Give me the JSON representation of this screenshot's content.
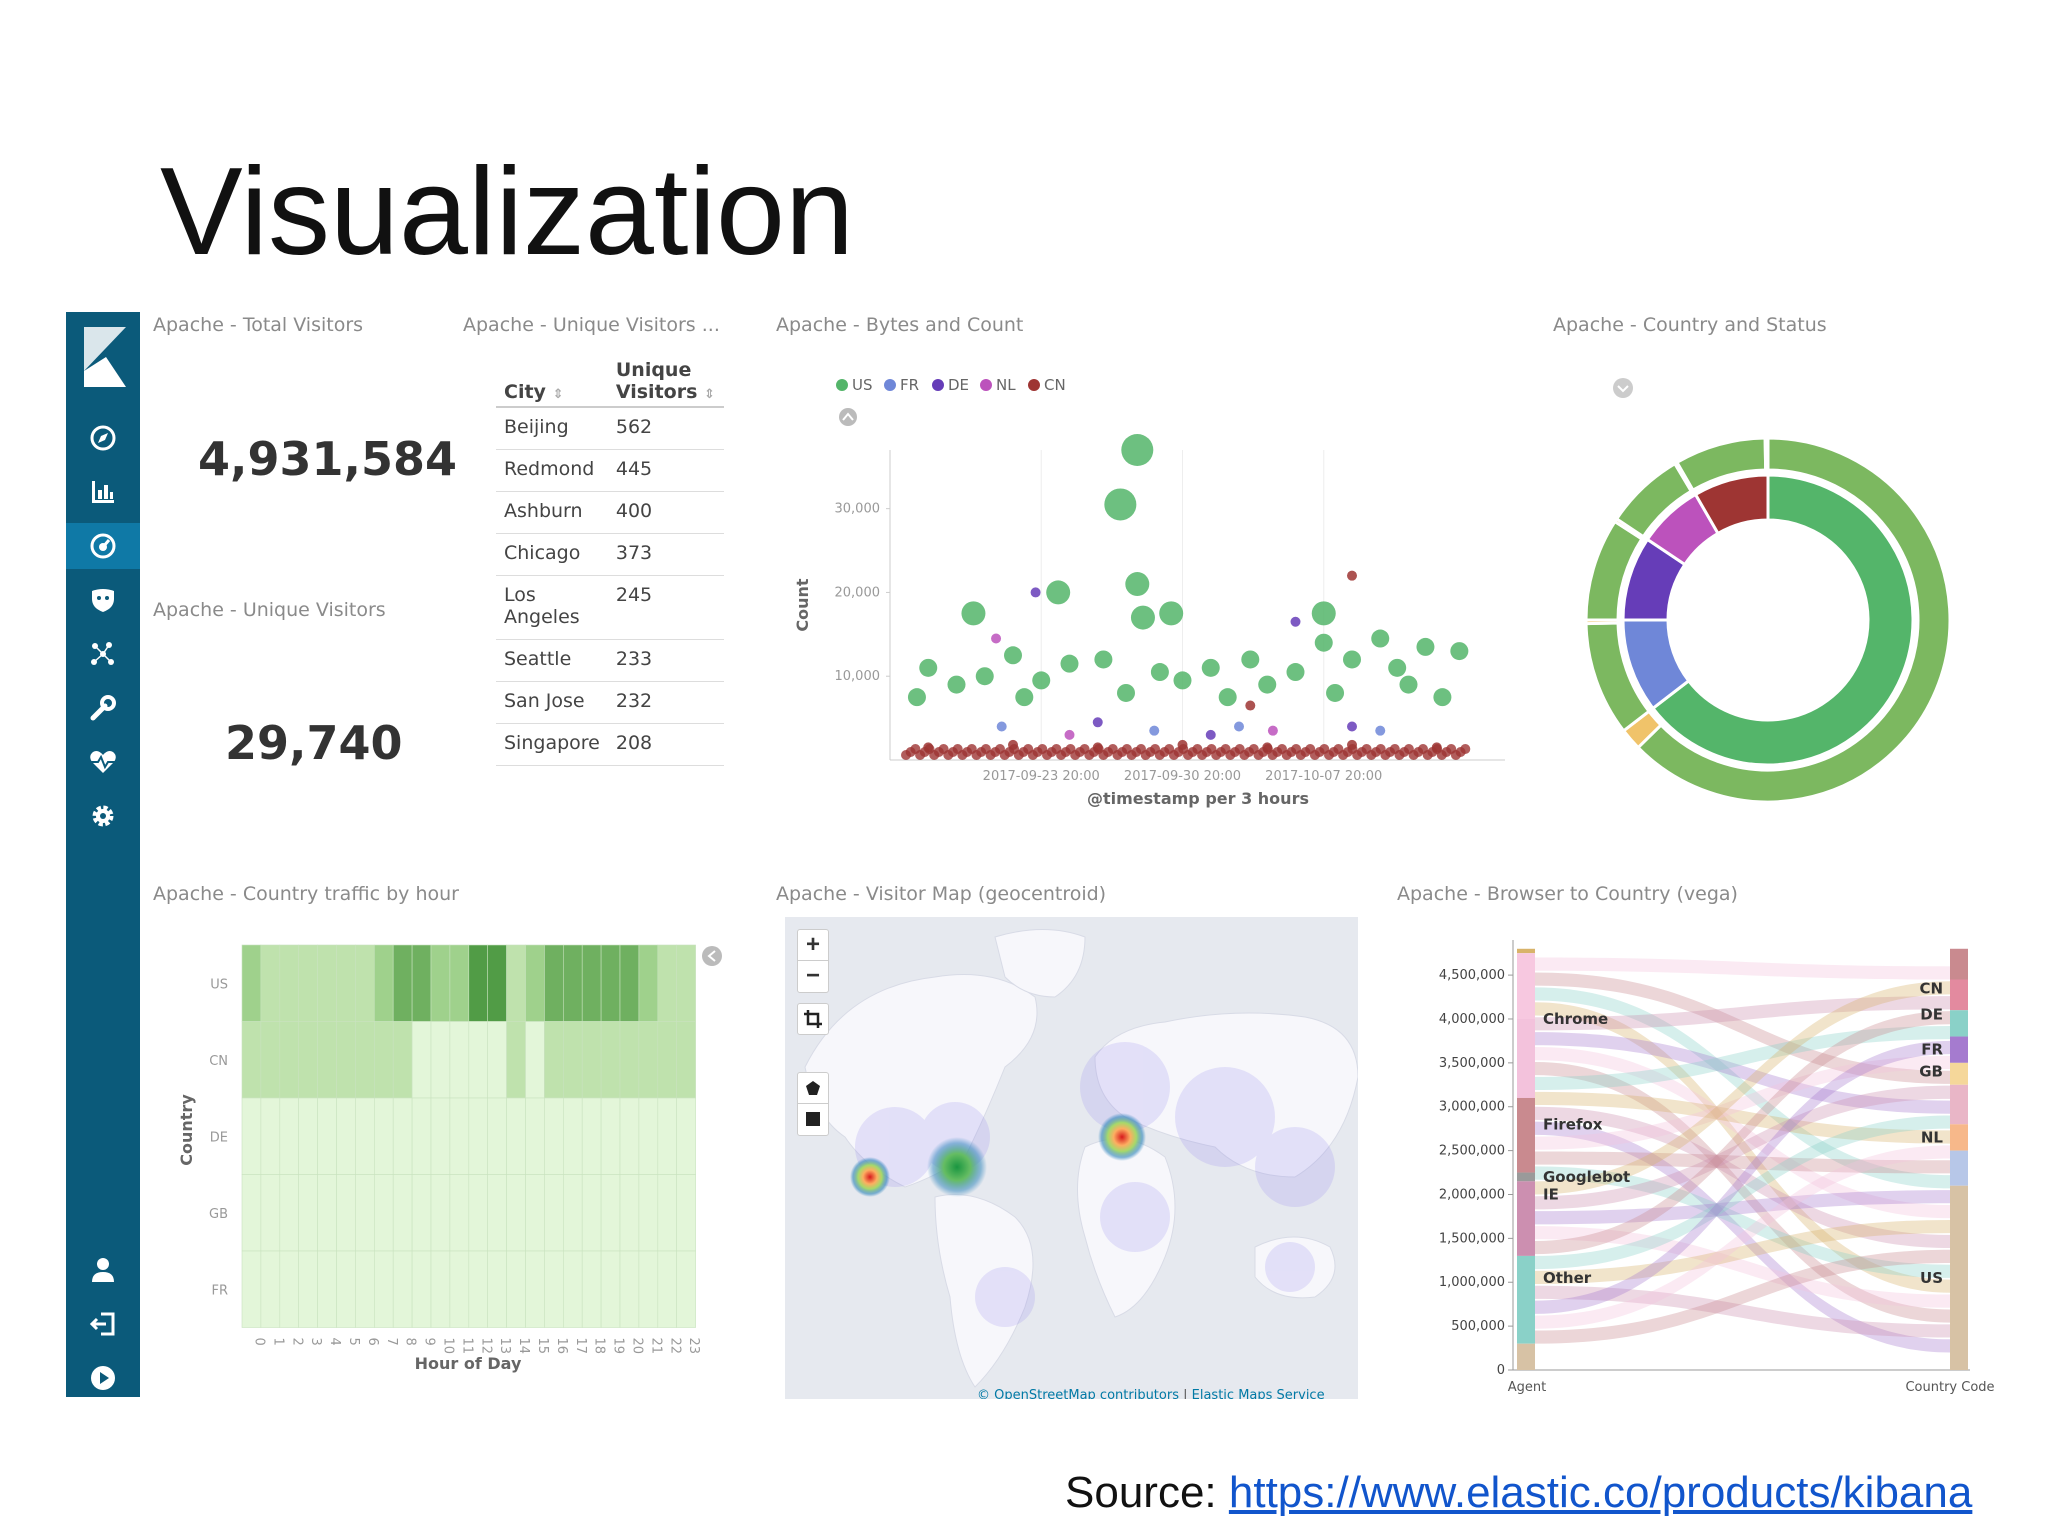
{
  "slide": {
    "title": "Visualization",
    "source_prefix": "Source: ",
    "source_link": "https://www.elastic.co/products/kibana"
  },
  "sidebar": {
    "items": [
      {
        "icon": "kibana-logo-icon"
      },
      {
        "icon": "compass-icon"
      },
      {
        "icon": "bar-chart-icon"
      },
      {
        "icon": "dashboard-icon",
        "active": true
      },
      {
        "icon": "shield-icon"
      },
      {
        "icon": "graph-icon"
      },
      {
        "icon": "wrench-icon"
      },
      {
        "icon": "heartbeat-icon"
      },
      {
        "icon": "gear-icon"
      },
      {
        "icon": "user-icon"
      },
      {
        "icon": "logout-icon"
      },
      {
        "icon": "play-icon"
      }
    ]
  },
  "panels": {
    "total_visitors": {
      "title": "Apache - Total Visitors",
      "value": "4,931,584"
    },
    "unique_visitors_metric": {
      "title": "Apache - Unique Visitors",
      "value": "29,740"
    },
    "unique_visitors_table": {
      "title": "Apache - Unique Visitors ...",
      "col_city": "City",
      "col_unique_1": "Unique",
      "col_unique_2": "Visitors",
      "rows": [
        {
          "city": "Beijing",
          "visitors": "562"
        },
        {
          "city": "Redmond",
          "visitors": "445"
        },
        {
          "city": "Ashburn",
          "visitors": "400"
        },
        {
          "city": "Chicago",
          "visitors": "373"
        },
        {
          "city": "Los Angeles",
          "visitors": "245"
        },
        {
          "city": "Seattle",
          "visitors": "233"
        },
        {
          "city": "San Jose",
          "visitors": "232"
        },
        {
          "city": "Singapore",
          "visitors": "208"
        }
      ]
    },
    "bytes_count": {
      "title": "Apache - Bytes and Count"
    },
    "country_status": {
      "title": "Apache - Country and Status"
    },
    "traffic_hour": {
      "title": "Apache - Country traffic by hour"
    },
    "visitor_map": {
      "title": "Apache - Visitor Map (geocentroid)",
      "zoom_in": "+",
      "zoom_out": "−",
      "attribution_1": "© OpenStreetMap contributors",
      "attribution_2": "Elastic Maps Service"
    },
    "browser_country": {
      "title": "Apache - Browser to Country (vega)"
    }
  },
  "chart_data": [
    {
      "type": "scatter",
      "legend": [
        "US",
        "FR",
        "DE",
        "NL",
        "CN"
      ],
      "colors": {
        "US": "#54b56a",
        "FR": "#6f87d8",
        "DE": "#663db8",
        "NL": "#bc52bc",
        "CN": "#9e3533"
      },
      "ylabel": "Count",
      "xlabel": "@timestamp per 3 hours",
      "ylim": [
        0,
        37000
      ],
      "y_ticks": [
        "10,000",
        "20,000",
        "30,000"
      ],
      "x_ticks": [
        "2017-09-23 20:00",
        "2017-09-30 20:00",
        "2017-10-07 20:00"
      ],
      "series": [
        {
          "name": "US",
          "points": [
            [
              0.42,
              37000
            ],
            [
              0.39,
              30500
            ],
            [
              0.42,
              21000
            ],
            [
              0.43,
              17000
            ],
            [
              0.13,
              17500
            ],
            [
              0.28,
              20000
            ],
            [
              0.48,
              17500
            ],
            [
              0.75,
              17500
            ],
            [
              0.75,
              14000
            ],
            [
              0.85,
              14500
            ],
            [
              0.93,
              13500
            ],
            [
              0.99,
              13000
            ],
            [
              0.2,
              12500
            ],
            [
              0.05,
              11000
            ],
            [
              0.15,
              10000
            ],
            [
              0.3,
              11500
            ],
            [
              0.36,
              12000
            ],
            [
              0.46,
              10500
            ],
            [
              0.55,
              11000
            ],
            [
              0.62,
              12000
            ],
            [
              0.7,
              10500
            ],
            [
              0.8,
              12000
            ],
            [
              0.88,
              11000
            ],
            [
              0.1,
              9000
            ],
            [
              0.25,
              9500
            ],
            [
              0.5,
              9500
            ],
            [
              0.65,
              9000
            ],
            [
              0.9,
              9000
            ],
            [
              0.03,
              7500
            ],
            [
              0.22,
              7500
            ],
            [
              0.4,
              8000
            ],
            [
              0.58,
              7500
            ],
            [
              0.77,
              8000
            ],
            [
              0.96,
              7500
            ]
          ]
        },
        {
          "name": "FR",
          "points": [
            [
              0.18,
              4000
            ],
            [
              0.45,
              3500
            ],
            [
              0.6,
              4000
            ],
            [
              0.85,
              3500
            ]
          ]
        },
        {
          "name": "DE",
          "points": [
            [
              0.24,
              20000
            ],
            [
              0.7,
              16500
            ],
            [
              0.35,
              4500
            ],
            [
              0.55,
              3000
            ],
            [
              0.8,
              4000
            ]
          ]
        },
        {
          "name": "NL",
          "points": [
            [
              0.17,
              14500
            ],
            [
              0.3,
              3000
            ],
            [
              0.66,
              3500
            ]
          ]
        },
        {
          "name": "CN",
          "points": [
            [
              0.8,
              22000
            ],
            [
              0.62,
              6500
            ],
            [
              0.05,
              1500
            ],
            [
              0.2,
              1800
            ],
            [
              0.35,
              1500
            ],
            [
              0.5,
              1800
            ],
            [
              0.65,
              1500
            ],
            [
              0.8,
              1800
            ],
            [
              0.95,
              1500
            ]
          ]
        }
      ]
    },
    {
      "type": "pie",
      "inner": [
        {
          "label": "US",
          "value": 62,
          "color": "#54b56a"
        },
        {
          "label": "FR",
          "value": 10,
          "color": "#6f87d8"
        },
        {
          "label": "DE",
          "value": 9,
          "color": "#663db8"
        },
        {
          "label": "NL",
          "value": 7,
          "color": "#bc52bc"
        },
        {
          "label": "CN",
          "value": 8,
          "color": "#9e3533"
        }
      ]
    },
    {
      "type": "heatmap",
      "ylabel": "Country",
      "xlabel": "Hour of Day",
      "rows": [
        "US",
        "CN",
        "DE",
        "GB",
        "FR"
      ],
      "cols": [
        "0",
        "1",
        "2",
        "3",
        "4",
        "5",
        "6",
        "7",
        "8",
        "9",
        "10",
        "11",
        "12",
        "13",
        "14",
        "15",
        "16",
        "17",
        "18",
        "19",
        "20",
        "21",
        "22",
        "23"
      ],
      "values": [
        [
          3,
          2,
          2,
          2,
          2,
          2,
          2,
          3,
          4,
          4,
          3,
          3,
          5,
          5,
          2,
          3,
          4,
          4,
          4,
          4,
          4,
          3,
          2,
          2
        ],
        [
          2,
          2,
          2,
          2,
          2,
          2,
          2,
          2,
          2,
          1,
          1,
          1,
          1,
          1,
          2,
          1,
          2,
          2,
          2,
          2,
          2,
          2,
          2,
          2
        ],
        [
          1,
          1,
          1,
          1,
          1,
          1,
          1,
          1,
          1,
          1,
          1,
          1,
          1,
          1,
          1,
          1,
          1,
          1,
          1,
          1,
          1,
          1,
          1,
          1
        ],
        [
          1,
          1,
          1,
          1,
          1,
          1,
          1,
          1,
          1,
          1,
          1,
          1,
          1,
          1,
          1,
          1,
          1,
          1,
          1,
          1,
          1,
          1,
          1,
          1
        ],
        [
          1,
          1,
          1,
          1,
          1,
          1,
          1,
          1,
          1,
          1,
          1,
          1,
          1,
          1,
          1,
          1,
          1,
          1,
          1,
          1,
          1,
          1,
          1,
          1
        ]
      ]
    },
    {
      "type": "area",
      "x_axis": [
        "Agent",
        "Country Code"
      ],
      "y_ticks": [
        "0",
        "500,000",
        "1,000,000",
        "1,500,000",
        "2,000,000",
        "2,500,000",
        "3,000,000",
        "3,500,000",
        "4,000,000",
        "4,500,000"
      ],
      "ylim": [
        0,
        4900000
      ],
      "left_labels": [
        {
          "label": "Chrome",
          "value": 4000000
        },
        {
          "label": "Firefox",
          "value": 2800000
        },
        {
          "label": "Googlebot",
          "value": 2200000
        },
        {
          "label": "IE",
          "value": 2000000
        },
        {
          "label": "Other",
          "value": 1050000
        }
      ],
      "right_labels": [
        {
          "label": "CN",
          "value": 4350000
        },
        {
          "label": "DE",
          "value": 4050000
        },
        {
          "label": "FR",
          "value": 3650000
        },
        {
          "label": "GB",
          "value": 3400000
        },
        {
          "label": "NL",
          "value": 2650000
        },
        {
          "label": "US",
          "value": 1050000
        }
      ]
    }
  ]
}
